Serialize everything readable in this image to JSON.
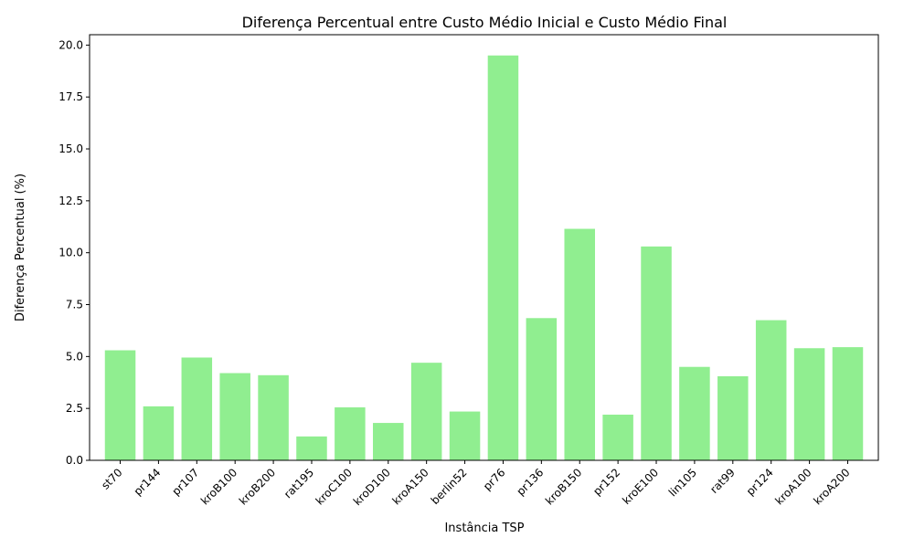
{
  "chart_data": {
    "type": "bar",
    "title": "Diferença Percentual entre Custo Médio Inicial e Custo Médio Final",
    "xlabel": "Instância TSP",
    "ylabel": "Diferença Percentual (%)",
    "categories": [
      "st70",
      "pr144",
      "pr107",
      "kroB100",
      "kroB200",
      "rat195",
      "kroC100",
      "kroD100",
      "kroA150",
      "berlin52",
      "pr76",
      "pr136",
      "kroB150",
      "pr152",
      "kroE100",
      "lin105",
      "rat99",
      "pr124",
      "kroA100",
      "kroA200"
    ],
    "values": [
      5.3,
      2.6,
      4.95,
      4.2,
      4.1,
      1.15,
      2.55,
      1.8,
      4.7,
      2.35,
      19.5,
      6.85,
      11.15,
      2.2,
      10.3,
      4.5,
      4.05,
      6.75,
      5.4,
      5.45
    ],
    "ylim": [
      0,
      20.5
    ],
    "yticks": [
      0.0,
      2.5,
      5.0,
      7.5,
      10.0,
      12.5,
      15.0,
      17.5,
      20.0
    ],
    "ytick_labels": [
      "0.0",
      "2.5",
      "5.0",
      "7.5",
      "10.0",
      "12.5",
      "15.0",
      "17.5",
      "20.0"
    ],
    "bar_color": "#90ee90",
    "grid": false,
    "legend": "none"
  }
}
